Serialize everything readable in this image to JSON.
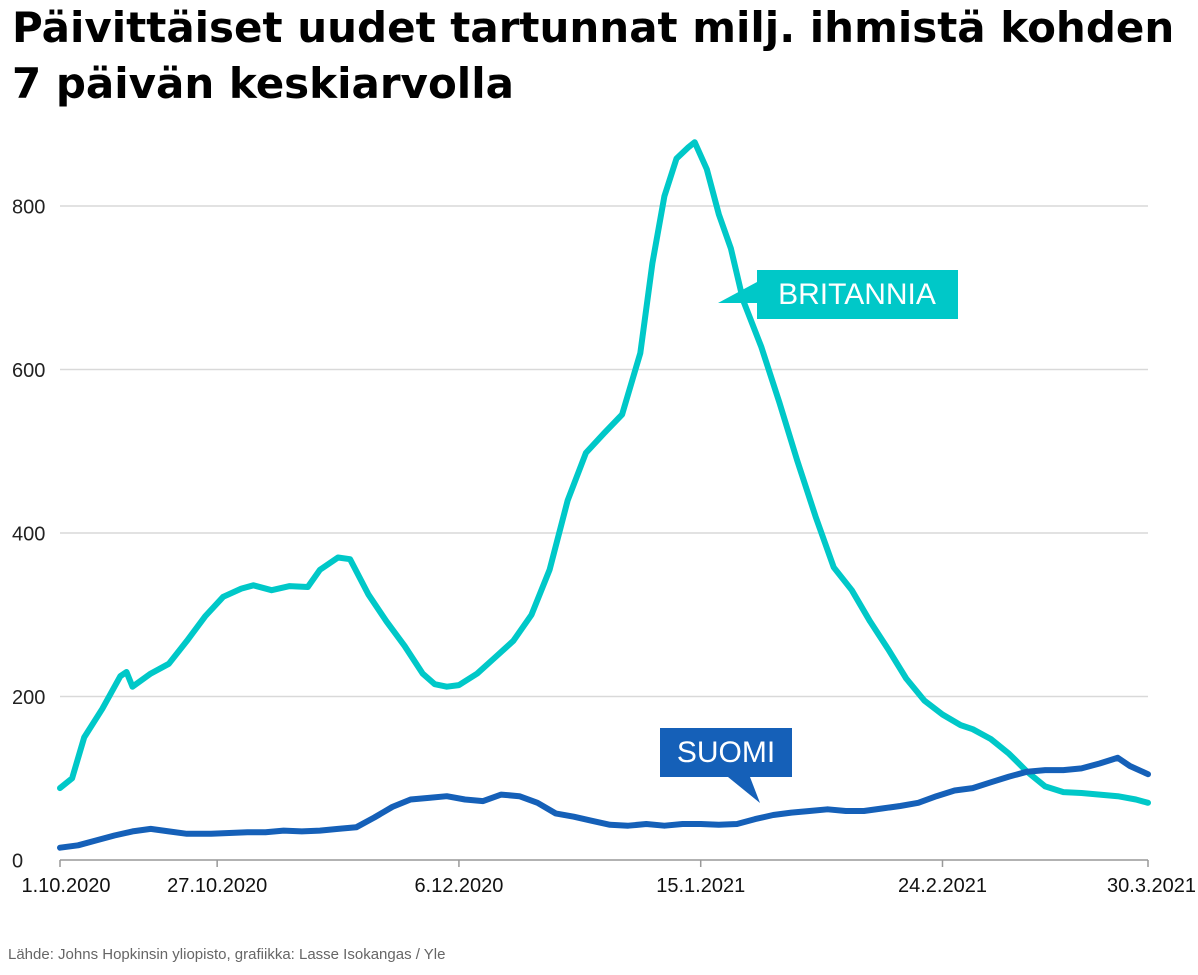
{
  "title_line1": "Päivittäiset uudet tartunnat milj. ihmistä kohden",
  "title_line2": "7 päivän keskiarvolla",
  "source": "Lähde: Johns Hopkinsin yliopisto, grafiikka: Lasse Isokangas / Yle",
  "colors": {
    "britannia": "#00c8c8",
    "suomi": "#1560b8",
    "grid": "#d9d9d9"
  },
  "chart_data": {
    "type": "line",
    "title": "Päivittäiset uudet tartunnat milj. ihmistä kohden 7 päivän keskiarvolla",
    "x_range": [
      "1.10.2020",
      "30.3.2021"
    ],
    "ylim": [
      0,
      900
    ],
    "yticks": [
      0,
      200,
      400,
      600,
      800
    ],
    "xticks": [
      "1.10.2020",
      "27.10.2020",
      "6.12.2020",
      "15.1.2021",
      "24.2.2021",
      "30.3.2021"
    ],
    "grid": "horizontal",
    "series": [
      {
        "name": "BRITANNIA",
        "points": [
          [
            "1.10.2020",
            88
          ],
          [
            "3.10.2020",
            100
          ],
          [
            "5.10.2020",
            150
          ],
          [
            "8.10.2020",
            185
          ],
          [
            "11.10.2020",
            225
          ],
          [
            "12.10.2020",
            230
          ],
          [
            "13.10.2020",
            212
          ],
          [
            "16.10.2020",
            228
          ],
          [
            "19.10.2020",
            240
          ],
          [
            "22.10.2020",
            268
          ],
          [
            "25.10.2020",
            298
          ],
          [
            "28.10.2020",
            322
          ],
          [
            "31.10.2020",
            332
          ],
          [
            "2.11.2020",
            336
          ],
          [
            "5.11.2020",
            330
          ],
          [
            "8.11.2020",
            335
          ],
          [
            "11.11.2020",
            334
          ],
          [
            "13.11.2020",
            355
          ],
          [
            "16.11.2020",
            370
          ],
          [
            "18.11.2020",
            368
          ],
          [
            "21.11.2020",
            325
          ],
          [
            "24.11.2020",
            292
          ],
          [
            "27.11.2020",
            262
          ],
          [
            "30.11.2020",
            228
          ],
          [
            "2.12.2020",
            215
          ],
          [
            "4.12.2020",
            212
          ],
          [
            "6.12.2020",
            214
          ],
          [
            "9.12.2020",
            228
          ],
          [
            "12.12.2020",
            248
          ],
          [
            "15.12.2020",
            268
          ],
          [
            "18.12.2020",
            300
          ],
          [
            "21.12.2020",
            355
          ],
          [
            "24.12.2020",
            440
          ],
          [
            "27.12.2020",
            498
          ],
          [
            "30.12.2020",
            522
          ],
          [
            "2.1.2021",
            545
          ],
          [
            "5.1.2021",
            620
          ],
          [
            "7.1.2021",
            730
          ],
          [
            "9.1.2021",
            812
          ],
          [
            "11.1.2021",
            858
          ],
          [
            "13.1.2021",
            872
          ],
          [
            "14.1.2021",
            878
          ],
          [
            "16.1.2021",
            845
          ],
          [
            "18.1.2021",
            790
          ],
          [
            "20.1.2021",
            748
          ],
          [
            "22.1.2021",
            685
          ],
          [
            "25.1.2021",
            628
          ],
          [
            "28.1.2021",
            560
          ],
          [
            "31.1.2021",
            488
          ],
          [
            "3.2.2021",
            420
          ],
          [
            "6.2.2021",
            358
          ],
          [
            "9.2.2021",
            330
          ],
          [
            "12.2.2021",
            292
          ],
          [
            "15.2.2021",
            258
          ],
          [
            "18.2.2021",
            222
          ],
          [
            "21.2.2021",
            195
          ],
          [
            "24.2.2021",
            178
          ],
          [
            "27.2.2021",
            165
          ],
          [
            "1.3.2021",
            160
          ],
          [
            "4.3.2021",
            148
          ],
          [
            "7.3.2021",
            130
          ],
          [
            "10.3.2021",
            108
          ],
          [
            "13.3.2021",
            90
          ],
          [
            "16.3.2021",
            83
          ],
          [
            "19.3.2021",
            82
          ],
          [
            "22.3.2021",
            80
          ],
          [
            "25.3.2021",
            78
          ],
          [
            "28.3.2021",
            74
          ],
          [
            "30.3.2021",
            70
          ]
        ]
      },
      {
        "name": "SUOMI",
        "points": [
          [
            "1.10.2020",
            15
          ],
          [
            "4.10.2020",
            18
          ],
          [
            "7.10.2020",
            24
          ],
          [
            "10.10.2020",
            30
          ],
          [
            "13.10.2020",
            35
          ],
          [
            "16.10.2020",
            38
          ],
          [
            "19.10.2020",
            35
          ],
          [
            "22.10.2020",
            32
          ],
          [
            "26.10.2020",
            32
          ],
          [
            "29.10.2020",
            33
          ],
          [
            "1.11.2020",
            34
          ],
          [
            "4.11.2020",
            34
          ],
          [
            "7.11.2020",
            36
          ],
          [
            "10.11.2020",
            35
          ],
          [
            "13.11.2020",
            36
          ],
          [
            "16.11.2020",
            38
          ],
          [
            "19.11.2020",
            40
          ],
          [
            "22.11.2020",
            52
          ],
          [
            "25.11.2020",
            65
          ],
          [
            "28.11.2020",
            74
          ],
          [
            "1.12.2020",
            76
          ],
          [
            "4.12.2020",
            78
          ],
          [
            "7.12.2020",
            74
          ],
          [
            "10.12.2020",
            72
          ],
          [
            "13.12.2020",
            80
          ],
          [
            "16.12.2020",
            78
          ],
          [
            "19.12.2020",
            70
          ],
          [
            "22.12.2020",
            57
          ],
          [
            "25.12.2020",
            53
          ],
          [
            "28.12.2020",
            48
          ],
          [
            "31.12.2020",
            43
          ],
          [
            "3.1.2021",
            42
          ],
          [
            "6.1.2021",
            44
          ],
          [
            "9.1.2021",
            42
          ],
          [
            "12.1.2021",
            44
          ],
          [
            "15.1.2021",
            44
          ],
          [
            "18.1.2021",
            43
          ],
          [
            "21.1.2021",
            44
          ],
          [
            "24.1.2021",
            50
          ],
          [
            "27.1.2021",
            55
          ],
          [
            "30.1.2021",
            58
          ],
          [
            "2.2.2021",
            60
          ],
          [
            "5.2.2021",
            62
          ],
          [
            "8.2.2021",
            60
          ],
          [
            "11.2.2021",
            60
          ],
          [
            "14.2.2021",
            63
          ],
          [
            "17.2.2021",
            66
          ],
          [
            "20.2.2021",
            70
          ],
          [
            "23.2.2021",
            78
          ],
          [
            "26.2.2021",
            85
          ],
          [
            "1.3.2021",
            88
          ],
          [
            "4.3.2021",
            95
          ],
          [
            "7.3.2021",
            102
          ],
          [
            "10.3.2021",
            108
          ],
          [
            "13.3.2021",
            110
          ],
          [
            "16.3.2021",
            110
          ],
          [
            "19.3.2021",
            112
          ],
          [
            "22.3.2021",
            118
          ],
          [
            "25.3.2021",
            125
          ],
          [
            "27.3.2021",
            115
          ],
          [
            "30.3.2021",
            105
          ]
        ]
      }
    ],
    "annotations": [
      "BRITANNIA",
      "SUOMI"
    ]
  }
}
